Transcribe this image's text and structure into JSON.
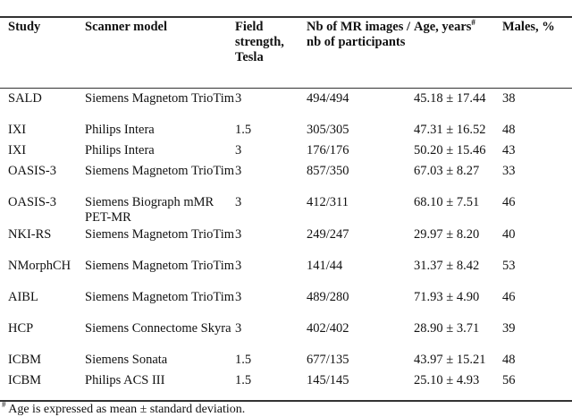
{
  "table": {
    "headers": [
      "Study",
      "Scanner model",
      "Field strength, Tesla",
      "Nb of MR images / nb of participants",
      "Age, years",
      "Males, %"
    ],
    "age_header_mark": "#",
    "rows": [
      [
        "SALD",
        "Siemens Magnetom TrioTim",
        "3",
        "494/494",
        "45.18 ± 17.44",
        "38"
      ],
      [
        "IXI",
        "Philips Intera",
        "1.5",
        "305/305",
        "47.31 ± 16.52",
        "48"
      ],
      [
        "IXI",
        "Philips Intera",
        "3",
        "176/176",
        "50.20 ± 15.46",
        "43"
      ],
      [
        "OASIS-3",
        "Siemens Magnetom TrioTim",
        "3",
        "857/350",
        "67.03 ± 8.27",
        "33"
      ],
      [
        "OASIS-3",
        "Siemens Biograph mMR PET-MR",
        "3",
        "412/311",
        "68.10 ± 7.51",
        "46"
      ],
      [
        "NKI-RS",
        "Siemens Magnetom TrioTim",
        "3",
        "249/247",
        "29.97 ± 8.20",
        "40"
      ],
      [
        "NMorphCH",
        "Siemens Magnetom TrioTim",
        "3",
        "141/44",
        "31.37 ± 8.42",
        "53"
      ],
      [
        "AIBL",
        "Siemens Magnetom TrioTim",
        "3",
        "489/280",
        "71.93 ± 4.90",
        "46"
      ],
      [
        "HCP",
        "Siemens Connectome Skyra",
        "3",
        "402/402",
        "28.90 ± 3.71",
        "39"
      ],
      [
        "ICBM",
        "Siemens Sonata",
        "1.5",
        "677/135",
        "43.97 ± 15.21",
        "48"
      ],
      [
        "ICBM",
        "Philips ACS III",
        "1.5",
        "145/145",
        "25.10 ± 4.93",
        "56"
      ]
    ]
  },
  "footnote": {
    "mark": "#",
    "text": " Age is expressed as mean ± standard deviation."
  }
}
